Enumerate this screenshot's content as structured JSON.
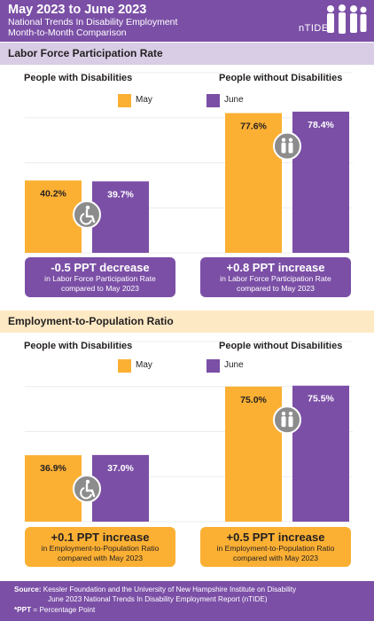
{
  "header": {
    "title": "May 2023 to June 2023",
    "subtitle1": "National Trends In Disability Employment",
    "subtitle2": "Month-to-Month Comparison",
    "logo": "nTIDE"
  },
  "legend": {
    "may": "May",
    "june": "June"
  },
  "colors": {
    "may": "#fbb034",
    "june": "#7b4fa6",
    "icon": "#8c8c8c"
  },
  "sections": [
    {
      "title": "Labor Force Participation Rate",
      "left_title": "People with Disabilities",
      "right_title": "People without Disabilities",
      "left_callout": {
        "headline": "-0.5 PPT decrease",
        "line1": "in Labor Force Participation Rate",
        "line2": "compared to May 2023"
      },
      "right_callout": {
        "headline": "+0.8 PPT increase",
        "line1": "in Labor Force Participation Rate",
        "line2": "compared to May 2023"
      }
    },
    {
      "title": "Employment-to-Population Ratio",
      "left_title": "People with Disabilities",
      "right_title": "People without Disabilities",
      "left_callout": {
        "headline": "+0.1 PPT increase",
        "line1": "in Employment-to-Population Ratio",
        "line2": "compared with May 2023"
      },
      "right_callout": {
        "headline": "+0.5 PPT increase",
        "line1": "in Employment-to-Population Ratio",
        "line2": "compared with May 2023"
      }
    }
  ],
  "chart_data": [
    {
      "type": "bar",
      "title": "Labor Force Participation Rate",
      "group": "People with Disabilities",
      "categories": [
        "May",
        "June"
      ],
      "values": [
        40.2,
        39.7
      ],
      "labels": [
        "40.2%",
        "39.7%"
      ],
      "ylim": [
        0,
        100
      ]
    },
    {
      "type": "bar",
      "title": "Labor Force Participation Rate",
      "group": "People without Disabilities",
      "categories": [
        "May",
        "June"
      ],
      "values": [
        77.6,
        78.4
      ],
      "labels": [
        "77.6%",
        "78.4%"
      ],
      "ylim": [
        0,
        100
      ]
    },
    {
      "type": "bar",
      "title": "Employment-to-Population Ratio",
      "group": "People with Disabilities",
      "categories": [
        "May",
        "June"
      ],
      "values": [
        36.9,
        37.0
      ],
      "labels": [
        "36.9%",
        "37.0%"
      ],
      "ylim": [
        0,
        100
      ]
    },
    {
      "type": "bar",
      "title": "Employment-to-Population Ratio",
      "group": "People without Disabilities",
      "categories": [
        "May",
        "June"
      ],
      "values": [
        75.0,
        75.5
      ],
      "labels": [
        "75.0%",
        "75.5%"
      ],
      "ylim": [
        0,
        100
      ]
    }
  ],
  "footer": {
    "source_label": "Source:",
    "source_line1": "Kessler Foundation and the University of New Hampshire Institute on Disability",
    "source_line2": "June 2023 National Trends In Disability Employment Report (nTIDE)",
    "ppt_label": "*PPT",
    "ppt_text": "= Percentage Point"
  }
}
